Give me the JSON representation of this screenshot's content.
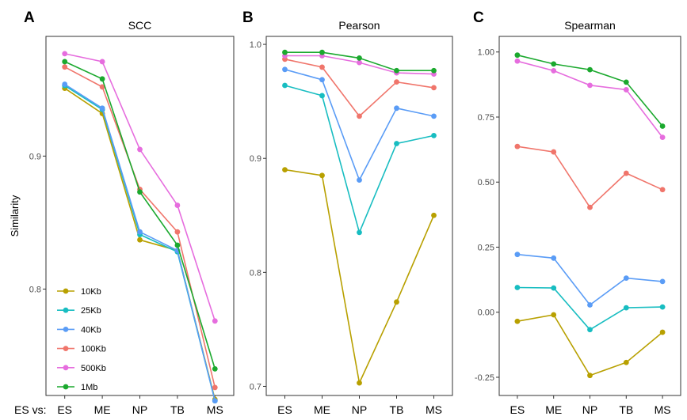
{
  "x_prefix": "ES vs:",
  "categories": [
    "ES",
    "ME",
    "NP",
    "TB",
    "MS"
  ],
  "chart_data": [
    {
      "type": "line",
      "panel": "A",
      "title": "SCC",
      "ylabel": "Similarity",
      "ylim": [
        0.72,
        0.99
      ],
      "yticks": [
        0.8,
        0.9
      ],
      "ytick_labels": [
        "0.8",
        "0.9"
      ],
      "legend": "bottom-left",
      "grid": false,
      "series": [
        {
          "name": "10Kb",
          "color": "#B8A000",
          "values": [
            0.951,
            0.932,
            0.837,
            0.829,
            0.717
          ]
        },
        {
          "name": "25Kb",
          "color": "#18BDC1",
          "values": [
            0.953,
            0.935,
            0.841,
            0.828,
            0.716
          ]
        },
        {
          "name": "40Kb",
          "color": "#5A9CF6",
          "values": [
            0.954,
            0.936,
            0.843,
            0.829,
            0.716
          ]
        },
        {
          "name": "100Kb",
          "color": "#F0756B",
          "values": [
            0.967,
            0.952,
            0.875,
            0.843,
            0.726
          ]
        },
        {
          "name": "500Kb",
          "color": "#E66DDE",
          "values": [
            0.977,
            0.971,
            0.905,
            0.863,
            0.776
          ]
        },
        {
          "name": "1Mb",
          "color": "#1BA92E",
          "values": [
            0.971,
            0.958,
            0.873,
            0.833,
            0.74
          ]
        }
      ]
    },
    {
      "type": "line",
      "panel": "B",
      "title": "Pearson",
      "ylabel": "",
      "ylim": [
        0.692,
        1.007
      ],
      "yticks": [
        0.7,
        0.8,
        0.9,
        1.0
      ],
      "ytick_labels": [
        "0.7",
        "0.8",
        "0.9",
        "1.0"
      ],
      "grid": false,
      "series": [
        {
          "name": "10Kb",
          "color": "#B8A000",
          "values": [
            0.89,
            0.885,
            0.703,
            0.774,
            0.85
          ]
        },
        {
          "name": "25Kb",
          "color": "#18BDC1",
          "values": [
            0.964,
            0.955,
            0.835,
            0.913,
            0.92
          ]
        },
        {
          "name": "40Kb",
          "color": "#5A9CF6",
          "values": [
            0.978,
            0.969,
            0.881,
            0.944,
            0.937
          ]
        },
        {
          "name": "100Kb",
          "color": "#F0756B",
          "values": [
            0.987,
            0.98,
            0.937,
            0.967,
            0.962
          ]
        },
        {
          "name": "500Kb",
          "color": "#E66DDE",
          "values": [
            0.99,
            0.99,
            0.984,
            0.975,
            0.974
          ]
        },
        {
          "name": "1Mb",
          "color": "#1BA92E",
          "values": [
            0.993,
            0.993,
            0.988,
            0.977,
            0.977
          ]
        }
      ]
    },
    {
      "type": "line",
      "panel": "C",
      "title": "Spearman",
      "ylabel": "",
      "ylim": [
        -0.32,
        1.06
      ],
      "yticks": [
        -0.25,
        0.0,
        0.25,
        0.5,
        0.75,
        1.0
      ],
      "ytick_labels": [
        "-0.25",
        "0.00",
        "0.25",
        "0.50",
        "0.75",
        "1.00"
      ],
      "grid": false,
      "series": [
        {
          "name": "10Kb",
          "color": "#B8A000",
          "values": [
            -0.035,
            -0.01,
            -0.243,
            -0.193,
            -0.077
          ]
        },
        {
          "name": "25Kb",
          "color": "#18BDC1",
          "values": [
            0.095,
            0.093,
            -0.067,
            0.017,
            0.02
          ]
        },
        {
          "name": "40Kb",
          "color": "#5A9CF6",
          "values": [
            0.222,
            0.208,
            0.028,
            0.131,
            0.118
          ]
        },
        {
          "name": "100Kb",
          "color": "#F0756B",
          "values": [
            0.637,
            0.616,
            0.403,
            0.534,
            0.471
          ]
        },
        {
          "name": "500Kb",
          "color": "#E66DDE",
          "values": [
            0.965,
            0.928,
            0.872,
            0.855,
            0.672
          ]
        },
        {
          "name": "1Mb",
          "color": "#1BA92E",
          "values": [
            0.988,
            0.954,
            0.932,
            0.884,
            0.715
          ]
        }
      ]
    }
  ]
}
